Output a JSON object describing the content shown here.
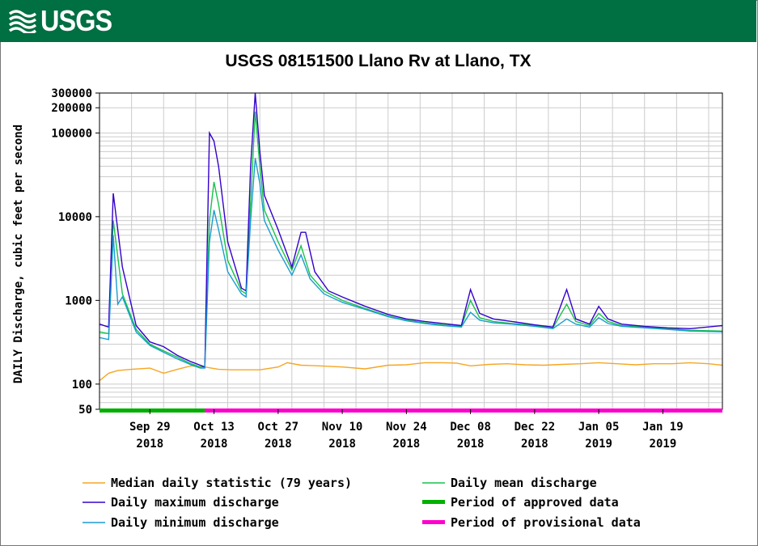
{
  "header": {
    "logo_text": "USGS"
  },
  "chart_data": {
    "type": "line",
    "title": "USGS 08151500 Llano Rv at Llano, TX",
    "ylabel": "DAILY Discharge, cubic feet per second",
    "xlabel": "",
    "yscale": "log",
    "ylim": [
      50,
      300000
    ],
    "y_ticks": [
      {
        "value": 50,
        "label": "50"
      },
      {
        "value": 100,
        "label": "100"
      },
      {
        "value": 1000,
        "label": "1000"
      },
      {
        "value": 10000,
        "label": "10000"
      },
      {
        "value": 100000,
        "label": "100000"
      },
      {
        "value": 200000,
        "label": "200000"
      },
      {
        "value": 300000,
        "label": "300000"
      }
    ],
    "x_start": "2018-09-18",
    "x_end": "2019-02-01",
    "x_ticks": [
      {
        "date": "2018-09-29",
        "label": "Sep 29",
        "year": "2018"
      },
      {
        "date": "2018-10-13",
        "label": "Oct 13",
        "year": "2018"
      },
      {
        "date": "2018-10-27",
        "label": "Oct 27",
        "year": "2018"
      },
      {
        "date": "2018-11-10",
        "label": "Nov 10",
        "year": "2018"
      },
      {
        "date": "2018-11-24",
        "label": "Nov 24",
        "year": "2018"
      },
      {
        "date": "2018-12-08",
        "label": "Dec 08",
        "year": "2018"
      },
      {
        "date": "2018-12-22",
        "label": "Dec 22",
        "year": "2018"
      },
      {
        "date": "2019-01-05",
        "label": "Jan 05",
        "year": "2019"
      },
      {
        "date": "2019-01-19",
        "label": "Jan 19",
        "year": "2019"
      }
    ],
    "grid": true,
    "legend_position": "bottom",
    "series": [
      {
        "name": "Median daily statistic (79 years)",
        "color": "#f5a623",
        "points": [
          [
            "2018-09-18",
            110
          ],
          [
            "2018-09-20",
            135
          ],
          [
            "2018-09-22",
            145
          ],
          [
            "2018-09-25",
            150
          ],
          [
            "2018-09-29",
            155
          ],
          [
            "2018-10-02",
            135
          ],
          [
            "2018-10-05",
            150
          ],
          [
            "2018-10-08",
            165
          ],
          [
            "2018-10-11",
            160
          ],
          [
            "2018-10-14",
            150
          ],
          [
            "2018-10-17",
            148
          ],
          [
            "2018-10-20",
            148
          ],
          [
            "2018-10-23",
            148
          ],
          [
            "2018-10-27",
            160
          ],
          [
            "2018-10-29",
            180
          ],
          [
            "2018-11-01",
            168
          ],
          [
            "2018-11-05",
            165
          ],
          [
            "2018-11-10",
            160
          ],
          [
            "2018-11-15",
            152
          ],
          [
            "2018-11-20",
            168
          ],
          [
            "2018-11-24",
            170
          ],
          [
            "2018-11-28",
            180
          ],
          [
            "2018-12-02",
            180
          ],
          [
            "2018-12-05",
            178
          ],
          [
            "2018-12-08",
            165
          ],
          [
            "2018-12-12",
            172
          ],
          [
            "2018-12-16",
            175
          ],
          [
            "2018-12-20",
            170
          ],
          [
            "2018-12-24",
            168
          ],
          [
            "2018-12-28",
            172
          ],
          [
            "2019-01-01",
            175
          ],
          [
            "2019-01-05",
            180
          ],
          [
            "2019-01-09",
            175
          ],
          [
            "2019-01-13",
            170
          ],
          [
            "2019-01-17",
            175
          ],
          [
            "2019-01-21",
            175
          ],
          [
            "2019-01-25",
            180
          ],
          [
            "2019-01-29",
            175
          ],
          [
            "2019-02-01",
            168
          ]
        ]
      },
      {
        "name": "Daily mean discharge",
        "color": "#17c24a",
        "points": [
          [
            "2018-09-18",
            420
          ],
          [
            "2018-09-20",
            400
          ],
          [
            "2018-09-21",
            9000
          ],
          [
            "2018-09-23",
            1200
          ],
          [
            "2018-09-26",
            450
          ],
          [
            "2018-09-29",
            300
          ],
          [
            "2018-10-02",
            250
          ],
          [
            "2018-10-05",
            210
          ],
          [
            "2018-10-08",
            175
          ],
          [
            "2018-10-10",
            160
          ],
          [
            "2018-10-11",
            160
          ],
          [
            "2018-10-12",
            9000
          ],
          [
            "2018-10-13",
            26000
          ],
          [
            "2018-10-14",
            14000
          ],
          [
            "2018-10-16",
            3000
          ],
          [
            "2018-10-19",
            1300
          ],
          [
            "2018-10-20",
            1200
          ],
          [
            "2018-10-21",
            15000
          ],
          [
            "2018-10-22",
            180000
          ],
          [
            "2018-10-23",
            40000
          ],
          [
            "2018-10-24",
            12000
          ],
          [
            "2018-10-27",
            5000
          ],
          [
            "2018-10-30",
            2300
          ],
          [
            "2018-11-01",
            4500
          ],
          [
            "2018-11-03",
            2000
          ],
          [
            "2018-11-06",
            1300
          ],
          [
            "2018-11-10",
            1000
          ],
          [
            "2018-11-15",
            800
          ],
          [
            "2018-11-20",
            650
          ],
          [
            "2018-11-24",
            580
          ],
          [
            "2018-11-28",
            540
          ],
          [
            "2018-12-02",
            510
          ],
          [
            "2018-12-06",
            490
          ],
          [
            "2018-12-08",
            1000
          ],
          [
            "2018-12-10",
            620
          ],
          [
            "2018-12-13",
            560
          ],
          [
            "2018-12-17",
            530
          ],
          [
            "2018-12-22",
            500
          ],
          [
            "2018-12-26",
            470
          ],
          [
            "2018-12-29",
            900
          ],
          [
            "2018-12-31",
            560
          ],
          [
            "2019-01-03",
            500
          ],
          [
            "2019-01-05",
            700
          ],
          [
            "2019-01-07",
            560
          ],
          [
            "2019-01-10",
            500
          ],
          [
            "2019-01-15",
            480
          ],
          [
            "2019-01-20",
            460
          ],
          [
            "2019-01-25",
            440
          ],
          [
            "2019-02-01",
            430
          ]
        ]
      },
      {
        "name": "Daily maximum discharge",
        "color": "#3300cc",
        "points": [
          [
            "2018-09-18",
            520
          ],
          [
            "2018-09-20",
            480
          ],
          [
            "2018-09-21",
            19000
          ],
          [
            "2018-09-23",
            2500
          ],
          [
            "2018-09-26",
            500
          ],
          [
            "2018-09-29",
            320
          ],
          [
            "2018-10-02",
            280
          ],
          [
            "2018-10-05",
            220
          ],
          [
            "2018-10-08",
            185
          ],
          [
            "2018-10-10",
            168
          ],
          [
            "2018-10-11",
            160
          ],
          [
            "2018-10-12",
            100000
          ],
          [
            "2018-10-13",
            80000
          ],
          [
            "2018-10-14",
            40000
          ],
          [
            "2018-10-16",
            5000
          ],
          [
            "2018-10-19",
            1400
          ],
          [
            "2018-10-20",
            1300
          ],
          [
            "2018-10-21",
            40000
          ],
          [
            "2018-10-22",
            300000
          ],
          [
            "2018-10-23",
            60000
          ],
          [
            "2018-10-24",
            18000
          ],
          [
            "2018-10-27",
            7000
          ],
          [
            "2018-10-30",
            2500
          ],
          [
            "2018-11-01",
            6500
          ],
          [
            "2018-11-02",
            6500
          ],
          [
            "2018-11-04",
            2200
          ],
          [
            "2018-11-07",
            1300
          ],
          [
            "2018-11-10",
            1100
          ],
          [
            "2018-11-15",
            850
          ],
          [
            "2018-11-20",
            680
          ],
          [
            "2018-11-24",
            600
          ],
          [
            "2018-11-28",
            560
          ],
          [
            "2018-12-02",
            530
          ],
          [
            "2018-12-06",
            500
          ],
          [
            "2018-12-08",
            1350
          ],
          [
            "2018-12-10",
            700
          ],
          [
            "2018-12-13",
            600
          ],
          [
            "2018-12-17",
            560
          ],
          [
            "2018-12-22",
            510
          ],
          [
            "2018-12-26",
            480
          ],
          [
            "2018-12-29",
            1350
          ],
          [
            "2018-12-31",
            600
          ],
          [
            "2019-01-03",
            520
          ],
          [
            "2019-01-05",
            850
          ],
          [
            "2019-01-07",
            600
          ],
          [
            "2019-01-10",
            520
          ],
          [
            "2019-01-15",
            490
          ],
          [
            "2019-01-20",
            470
          ],
          [
            "2019-01-25",
            460
          ],
          [
            "2019-02-01",
            500
          ]
        ]
      },
      {
        "name": "Daily minimum discharge",
        "color": "#1a9cd1",
        "points": [
          [
            "2018-09-18",
            360
          ],
          [
            "2018-09-20",
            340
          ],
          [
            "2018-09-21",
            6000
          ],
          [
            "2018-09-22",
            900
          ],
          [
            "2018-09-23",
            1100
          ],
          [
            "2018-09-26",
            420
          ],
          [
            "2018-09-29",
            290
          ],
          [
            "2018-10-02",
            240
          ],
          [
            "2018-10-05",
            200
          ],
          [
            "2018-10-08",
            170
          ],
          [
            "2018-10-10",
            155
          ],
          [
            "2018-10-11",
            155
          ],
          [
            "2018-10-12",
            5000
          ],
          [
            "2018-10-13",
            12000
          ],
          [
            "2018-10-14",
            7000
          ],
          [
            "2018-10-16",
            2200
          ],
          [
            "2018-10-19",
            1200
          ],
          [
            "2018-10-20",
            1100
          ],
          [
            "2018-10-21",
            9000
          ],
          [
            "2018-10-22",
            50000
          ],
          [
            "2018-10-23",
            25000
          ],
          [
            "2018-10-24",
            9000
          ],
          [
            "2018-10-27",
            4000
          ],
          [
            "2018-10-30",
            2000
          ],
          [
            "2018-11-01",
            3500
          ],
          [
            "2018-11-03",
            1800
          ],
          [
            "2018-11-06",
            1200
          ],
          [
            "2018-11-10",
            950
          ],
          [
            "2018-11-15",
            780
          ],
          [
            "2018-11-20",
            640
          ],
          [
            "2018-11-24",
            570
          ],
          [
            "2018-11-28",
            530
          ],
          [
            "2018-12-02",
            500
          ],
          [
            "2018-12-06",
            480
          ],
          [
            "2018-12-08",
            720
          ],
          [
            "2018-12-10",
            580
          ],
          [
            "2018-12-13",
            540
          ],
          [
            "2018-12-17",
            520
          ],
          [
            "2018-12-22",
            490
          ],
          [
            "2018-12-26",
            460
          ],
          [
            "2018-12-29",
            600
          ],
          [
            "2018-12-31",
            520
          ],
          [
            "2019-01-03",
            480
          ],
          [
            "2019-01-05",
            620
          ],
          [
            "2019-01-07",
            530
          ],
          [
            "2019-01-10",
            490
          ],
          [
            "2019-01-15",
            470
          ],
          [
            "2019-01-20",
            450
          ],
          [
            "2019-01-25",
            430
          ],
          [
            "2019-02-01",
            420
          ]
        ]
      }
    ],
    "periods": [
      {
        "name": "Period of approved data",
        "color": "#00b000",
        "start": "2018-09-18",
        "end": "2018-10-11"
      },
      {
        "name": "Period of provisional data",
        "color": "#ff00cc",
        "start": "2018-10-11",
        "end": "2019-02-01"
      }
    ],
    "legend": [
      {
        "label": "Median daily statistic (79 years)",
        "color": "#f5a623",
        "kind": "line"
      },
      {
        "label": "Daily mean discharge",
        "color": "#17c24a",
        "kind": "line"
      },
      {
        "label": "Daily maximum discharge",
        "color": "#3300cc",
        "kind": "line"
      },
      {
        "label": "Period of approved data",
        "color": "#00b000",
        "kind": "bar"
      },
      {
        "label": "Daily minimum discharge",
        "color": "#1a9cd1",
        "kind": "line"
      },
      {
        "label": "Period of provisional data",
        "color": "#ff00cc",
        "kind": "bar"
      }
    ]
  }
}
